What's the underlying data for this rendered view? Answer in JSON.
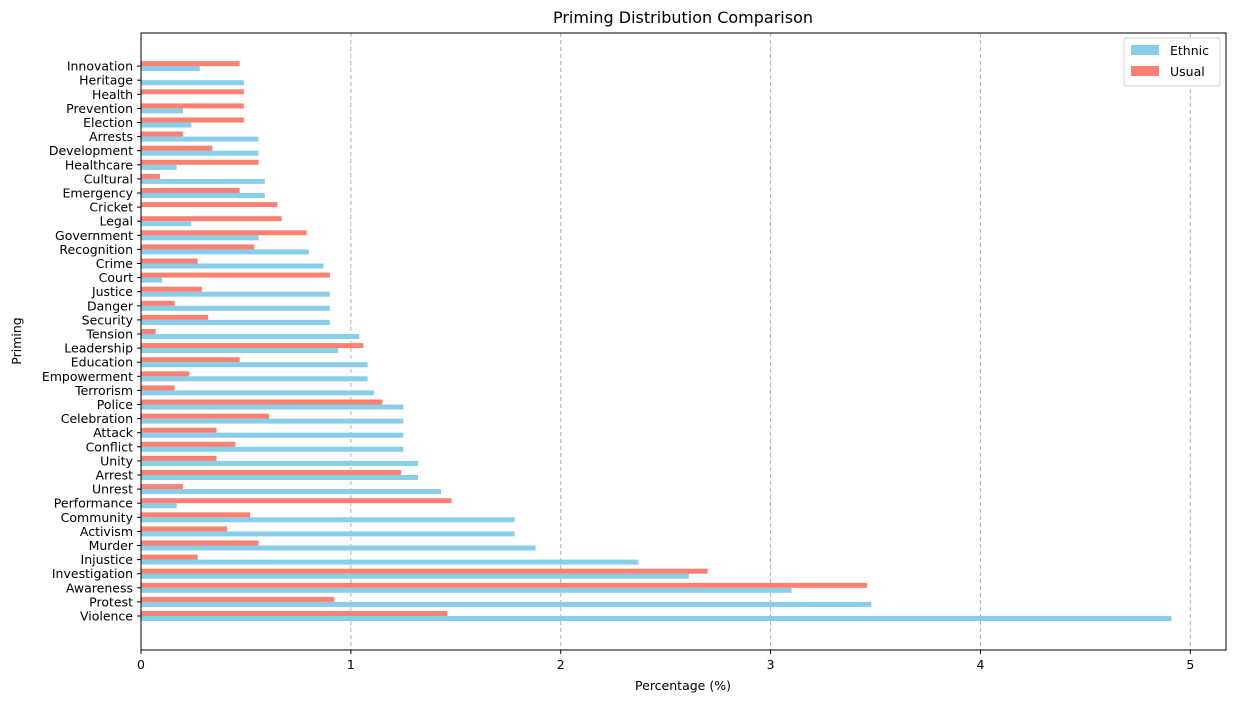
{
  "chart_data": {
    "type": "bar",
    "orientation": "horizontal",
    "title": "Priming Distribution Comparison",
    "xlabel": "Percentage (%)",
    "ylabel": "Priming",
    "xlim": [
      0,
      5.17
    ],
    "xticks": [
      "0",
      "1",
      "2",
      "3",
      "4",
      "5"
    ],
    "grid": "vertical dashed",
    "legend_position": "top-right",
    "categories": [
      "Violence",
      "Protest",
      "Awareness",
      "Investigation",
      "Injustice",
      "Murder",
      "Activism",
      "Community",
      "Performance",
      "Unrest",
      "Arrest",
      "Unity",
      "Conflict",
      "Attack",
      "Celebration",
      "Police",
      "Terrorism",
      "Empowerment",
      "Education",
      "Leadership",
      "Tension",
      "Security",
      "Danger",
      "Justice",
      "Court",
      "Crime",
      "Recognition",
      "Government",
      "Legal",
      "Cricket",
      "Emergency",
      "Cultural",
      "Healthcare",
      "Development",
      "Arrests",
      "Election",
      "Prevention",
      "Health",
      "Heritage",
      "Innovation"
    ],
    "series": [
      {
        "name": "Ethnic",
        "color": "#87ceeb",
        "values": [
          4.91,
          3.48,
          3.1,
          2.61,
          2.37,
          1.88,
          1.78,
          1.78,
          0.17,
          1.43,
          1.32,
          1.32,
          1.25,
          1.25,
          1.25,
          1.25,
          1.11,
          1.08,
          1.08,
          0.94,
          1.04,
          0.9,
          0.9,
          0.9,
          0.1,
          0.87,
          0.8,
          0.56,
          0.24,
          0.0,
          0.59,
          0.59,
          0.17,
          0.56,
          0.56,
          0.24,
          0.2,
          0.0,
          0.49,
          0.28
        ]
      },
      {
        "name": "Usual",
        "color": "#fa8072",
        "values": [
          1.46,
          0.92,
          3.46,
          2.7,
          0.27,
          0.56,
          0.41,
          0.52,
          1.48,
          0.2,
          1.24,
          0.36,
          0.45,
          0.36,
          0.61,
          1.15,
          0.16,
          0.23,
          0.47,
          1.06,
          0.07,
          0.32,
          0.16,
          0.29,
          0.9,
          0.27,
          0.54,
          0.79,
          0.67,
          0.65,
          0.47,
          0.09,
          0.56,
          0.34,
          0.2,
          0.49,
          0.49,
          0.49,
          0.0,
          0.47
        ]
      }
    ]
  }
}
